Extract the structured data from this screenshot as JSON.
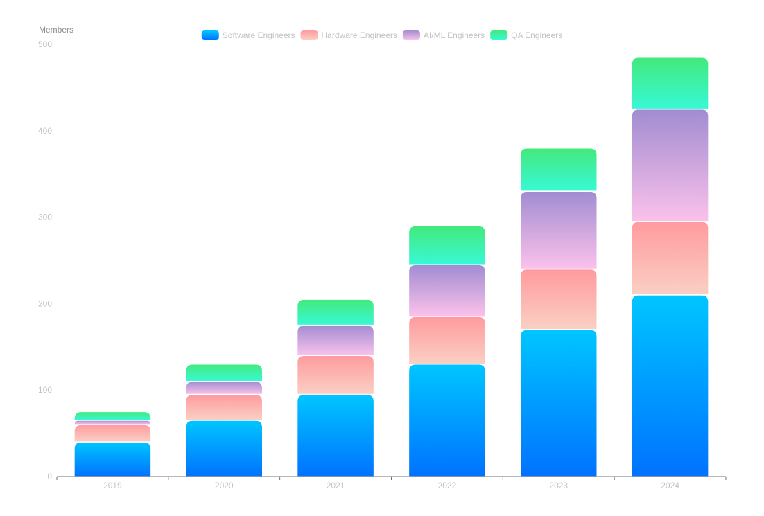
{
  "chart_data": {
    "type": "bar",
    "stacked": true,
    "ylabel": "Members",
    "ylim": [
      0,
      500
    ],
    "yticks": [
      0,
      100,
      200,
      300,
      400,
      500
    ],
    "categories": [
      "2019",
      "2020",
      "2021",
      "2022",
      "2023",
      "2024"
    ],
    "series": [
      {
        "name": "Software Engineers",
        "values": [
          40,
          65,
          95,
          130,
          170,
          210
        ],
        "color_top": "#00c6ff",
        "color_bottom": "#0072ff"
      },
      {
        "name": "Hardware Engineers",
        "values": [
          20,
          30,
          45,
          55,
          70,
          85
        ],
        "color_top": "#ff9a9e",
        "color_bottom": "#fad0c4"
      },
      {
        "name": "AI/ML Engineers",
        "values": [
          5,
          15,
          35,
          60,
          90,
          130
        ],
        "color_top": "#a18cd1",
        "color_bottom": "#fbc2eb"
      },
      {
        "name": "QA Engineers",
        "values": [
          10,
          20,
          30,
          45,
          50,
          60
        ],
        "color_top": "#43e97b",
        "color_bottom": "#38f9d7"
      }
    ],
    "legend_position": "top-center"
  }
}
